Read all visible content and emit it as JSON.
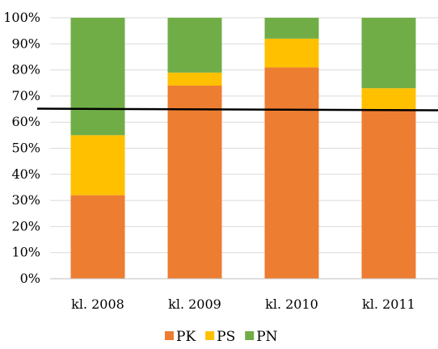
{
  "chart_data": {
    "type": "bar",
    "stacked": true,
    "categories": [
      "kl. 2008",
      "kl. 2009",
      "kl. 2010",
      "kl. 2011"
    ],
    "series": [
      {
        "name": "PK",
        "color": "#ED7D31",
        "values": [
          32,
          74,
          81,
          65
        ]
      },
      {
        "name": "PS",
        "color": "#FFC000",
        "values": [
          23,
          5,
          11,
          8
        ]
      },
      {
        "name": "PN",
        "color": "#70AD47",
        "values": [
          45,
          21,
          8,
          27
        ]
      }
    ],
    "reference_line": {
      "value": 65,
      "color": "#000000"
    },
    "ylim": [
      0,
      100
    ],
    "y_ticks": [
      "0%",
      "10%",
      "20%",
      "30%",
      "40%",
      "50%",
      "60%",
      "70%",
      "80%",
      "90%",
      "100%"
    ],
    "y_tick_values": [
      0,
      10,
      20,
      30,
      40,
      50,
      60,
      70,
      80,
      90,
      100
    ],
    "grid": true,
    "legend_position": "bottom",
    "title": "",
    "xlabel": "",
    "ylabel": ""
  }
}
